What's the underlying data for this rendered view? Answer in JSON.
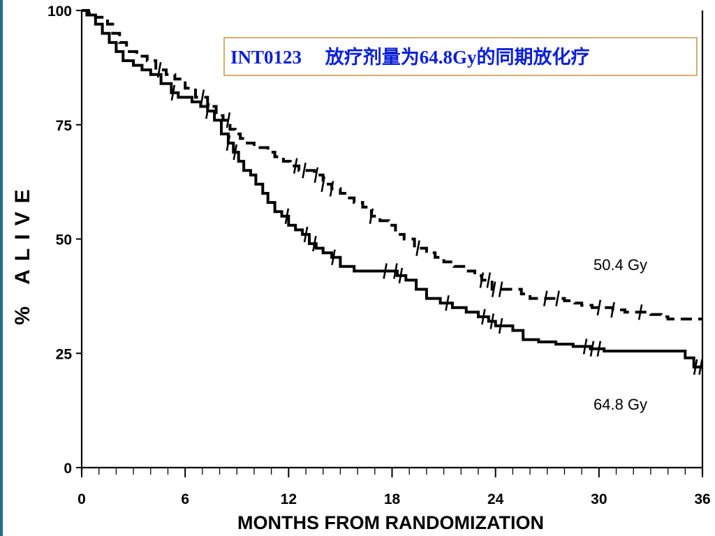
{
  "annotation": "INT0123     放疗剂量为64.8Gy的同期放化疗",
  "colors": {
    "annotation_text": "#0b1fd8",
    "annotation_border": "#c8933a",
    "ink": "#000000"
  },
  "chart_data": {
    "type": "line",
    "title": "",
    "xlabel": "MONTHS FROM RANDOMIZATION",
    "ylabel": "% ALIVE",
    "xlim": [
      0,
      36
    ],
    "ylim": [
      0,
      100
    ],
    "xticks": [
      0,
      6,
      12,
      18,
      24,
      30,
      36
    ],
    "yticks": [
      0,
      25,
      50,
      75,
      100
    ],
    "xtick_labels": [
      "0",
      "6",
      "12",
      "18",
      "24",
      "30",
      "36"
    ],
    "ytick_labels": [
      "0",
      "25",
      "50",
      "75",
      "100"
    ],
    "minor_xticks_every": 1,
    "grid": false,
    "legend": "none",
    "series": [
      {
        "name": "50.4 Gy",
        "style": "dashed",
        "x": [
          0,
          0.4,
          0.8,
          1.3,
          1.5,
          1.8,
          2.2,
          2.6,
          3.2,
          3.8,
          4.3,
          4.9,
          5.4,
          6.0,
          6.6,
          7.3,
          7.8,
          8.2,
          8.6,
          8.9,
          9.2,
          9.6,
          10.0,
          10.4,
          10.8,
          11.2,
          11.7,
          12.1,
          12.6,
          13.0,
          13.5,
          14.0,
          14.5,
          15.0,
          15.4,
          15.8,
          16.3,
          16.8,
          17.3,
          17.8,
          18.2,
          18.7,
          19.3,
          20.0,
          20.5,
          21.0,
          21.6,
          22.3,
          22.8,
          23.2,
          23.8,
          24.5,
          25.0,
          25.5,
          26.0,
          26.8,
          27.4,
          28.0,
          28.6,
          29.0,
          29.6,
          30.2,
          30.8,
          31.5,
          32.3,
          33.0,
          33.6,
          34.0,
          35.0,
          36.0
        ],
        "y": [
          100,
          99.5,
          98.5,
          98.5,
          97,
          95,
          93,
          91,
          90,
          89,
          87,
          86,
          85,
          83,
          81,
          79,
          77,
          76,
          74,
          73,
          72,
          71,
          70,
          70,
          69,
          68,
          67,
          66,
          65,
          65,
          64,
          62,
          61,
          60,
          59,
          58,
          57,
          55,
          54,
          53,
          51,
          50,
          48,
          47,
          46,
          45,
          44,
          43,
          42,
          41,
          39,
          39,
          39,
          38,
          37,
          37,
          37,
          36.5,
          36,
          35.5,
          35,
          35,
          34.5,
          34,
          34,
          33.5,
          33,
          32.5,
          32.5,
          32.5
        ],
        "censor_x": [
          4.5,
          7.0,
          8.5,
          12.4,
          12.9,
          13.6,
          14.0,
          14.5,
          16.8,
          19.5,
          23.2,
          23.6,
          23.9,
          24.3,
          26.9,
          27.6,
          30.0,
          30.8,
          32.4
        ]
      },
      {
        "name": "64.8 Gy",
        "style": "solid",
        "x": [
          0,
          0.3,
          0.8,
          1.2,
          1.6,
          2.0,
          2.4,
          3.0,
          3.5,
          4.0,
          4.6,
          5.2,
          5.6,
          6.0,
          6.4,
          6.9,
          7.3,
          7.7,
          8.1,
          8.5,
          8.8,
          9.1,
          9.4,
          9.8,
          10.1,
          10.5,
          10.8,
          11.2,
          11.6,
          12.0,
          12.4,
          12.8,
          13.2,
          13.6,
          14.0,
          14.5,
          15.0,
          15.8,
          16.5,
          17.5,
          18.3,
          18.8,
          19.4,
          20.0,
          20.8,
          21.5,
          22.3,
          23.0,
          23.6,
          24.0,
          25.0,
          25.6,
          26.5,
          27.5,
          28.5,
          29.5,
          30.3,
          31.5,
          33.0,
          34.5,
          35.0,
          35.5,
          36.0
        ],
        "y": [
          100,
          99,
          97,
          95,
          93,
          91,
          89,
          88,
          87,
          86,
          84,
          82,
          81,
          81,
          80,
          79,
          78,
          76,
          73,
          71,
          69,
          67,
          65,
          64,
          62,
          60,
          58,
          56,
          55,
          53,
          52,
          51,
          49,
          48,
          47,
          46,
          44,
          43,
          43,
          43,
          42,
          41,
          39,
          37,
          36,
          35,
          34,
          33,
          32,
          31,
          30,
          28,
          27.5,
          27,
          26.5,
          26,
          25.5,
          25.5,
          25.5,
          25.5,
          24,
          22,
          22
        ],
        "censor_x": [
          5.3,
          7.3,
          8.5,
          8.9,
          11.9,
          13.0,
          13.5,
          14.6,
          17.6,
          18.2,
          18.5,
          21.2,
          23.3,
          23.8,
          24.3,
          29.2,
          29.6,
          30.0,
          35.6,
          35.9
        ]
      }
    ],
    "series_labels": [
      "50.4 Gy",
      "64.8 Gy"
    ]
  }
}
